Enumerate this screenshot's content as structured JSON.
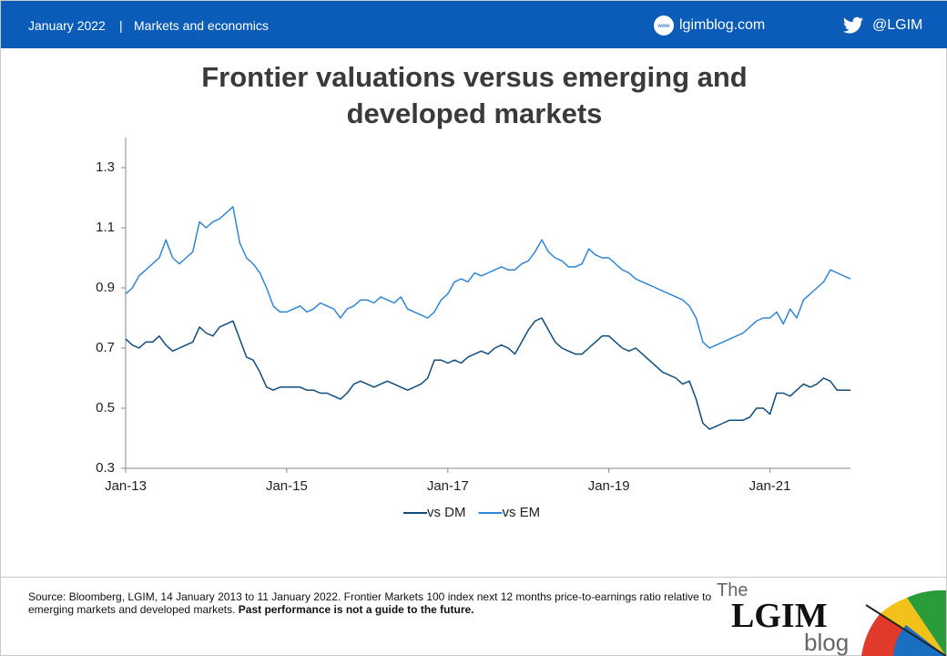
{
  "header": {
    "date": "January 2022",
    "section": "Markets and economics",
    "site": "lgimblog.com",
    "handle": "@LGIM"
  },
  "chart_data": {
    "type": "line",
    "title": "Frontier valuations versus emerging and developed markets",
    "x": [
      "2013-01",
      "2013-02",
      "2013-03",
      "2013-04",
      "2013-05",
      "2013-06",
      "2013-07",
      "2013-08",
      "2013-09",
      "2013-10",
      "2013-11",
      "2013-12",
      "2014-01",
      "2014-02",
      "2014-03",
      "2014-04",
      "2014-05",
      "2014-06",
      "2014-07",
      "2014-08",
      "2014-09",
      "2014-10",
      "2014-11",
      "2014-12",
      "2015-01",
      "2015-02",
      "2015-03",
      "2015-04",
      "2015-05",
      "2015-06",
      "2015-07",
      "2015-08",
      "2015-09",
      "2015-10",
      "2015-11",
      "2015-12",
      "2016-01",
      "2016-02",
      "2016-03",
      "2016-04",
      "2016-05",
      "2016-06",
      "2016-07",
      "2016-08",
      "2016-09",
      "2016-10",
      "2016-11",
      "2016-12",
      "2017-01",
      "2017-02",
      "2017-03",
      "2017-04",
      "2017-05",
      "2017-06",
      "2017-07",
      "2017-08",
      "2017-09",
      "2017-10",
      "2017-11",
      "2017-12",
      "2018-01",
      "2018-02",
      "2018-03",
      "2018-04",
      "2018-05",
      "2018-06",
      "2018-07",
      "2018-08",
      "2018-09",
      "2018-10",
      "2018-11",
      "2018-12",
      "2019-01",
      "2019-02",
      "2019-03",
      "2019-04",
      "2019-05",
      "2019-06",
      "2019-07",
      "2019-08",
      "2019-09",
      "2019-10",
      "2019-11",
      "2019-12",
      "2020-01",
      "2020-02",
      "2020-03",
      "2020-04",
      "2020-05",
      "2020-06",
      "2020-07",
      "2020-08",
      "2020-09",
      "2020-10",
      "2020-11",
      "2020-12",
      "2021-01",
      "2021-02",
      "2021-03",
      "2021-04",
      "2021-05",
      "2021-06",
      "2021-07",
      "2021-08",
      "2021-09",
      "2021-10",
      "2021-11",
      "2021-12",
      "2022-01"
    ],
    "series": [
      {
        "name": "vs DM",
        "color": "#0e4c7f",
        "values": [
          0.73,
          0.71,
          0.7,
          0.72,
          0.72,
          0.74,
          0.71,
          0.69,
          0.7,
          0.71,
          0.72,
          0.77,
          0.75,
          0.74,
          0.77,
          0.78,
          0.79,
          0.73,
          0.67,
          0.66,
          0.62,
          0.57,
          0.56,
          0.57,
          0.57,
          0.57,
          0.57,
          0.56,
          0.56,
          0.55,
          0.55,
          0.54,
          0.53,
          0.55,
          0.58,
          0.59,
          0.58,
          0.57,
          0.58,
          0.59,
          0.58,
          0.57,
          0.56,
          0.57,
          0.58,
          0.6,
          0.66,
          0.66,
          0.65,
          0.66,
          0.65,
          0.67,
          0.68,
          0.69,
          0.68,
          0.7,
          0.71,
          0.7,
          0.68,
          0.72,
          0.76,
          0.79,
          0.8,
          0.76,
          0.72,
          0.7,
          0.69,
          0.68,
          0.68,
          0.7,
          0.72,
          0.74,
          0.74,
          0.72,
          0.7,
          0.69,
          0.7,
          0.68,
          0.66,
          0.64,
          0.62,
          0.61,
          0.6,
          0.58,
          0.59,
          0.53,
          0.45,
          0.43,
          0.44,
          0.45,
          0.46,
          0.46,
          0.46,
          0.47,
          0.5,
          0.5,
          0.48,
          0.55,
          0.55,
          0.54,
          0.56,
          0.58,
          0.57,
          0.58,
          0.6,
          0.59,
          0.56,
          0.56,
          0.56
        ]
      },
      {
        "name": "vs EM",
        "color": "#2f86d8",
        "values": [
          0.88,
          0.9,
          0.94,
          0.96,
          0.98,
          1.0,
          1.06,
          1.0,
          0.98,
          1.0,
          1.02,
          1.12,
          1.1,
          1.12,
          1.13,
          1.15,
          1.17,
          1.05,
          1.0,
          0.98,
          0.95,
          0.9,
          0.84,
          0.82,
          0.82,
          0.83,
          0.84,
          0.82,
          0.83,
          0.85,
          0.84,
          0.83,
          0.8,
          0.83,
          0.84,
          0.86,
          0.86,
          0.85,
          0.87,
          0.86,
          0.85,
          0.87,
          0.83,
          0.82,
          0.81,
          0.8,
          0.82,
          0.86,
          0.88,
          0.92,
          0.93,
          0.92,
          0.95,
          0.94,
          0.95,
          0.96,
          0.97,
          0.96,
          0.96,
          0.98,
          0.99,
          1.02,
          1.06,
          1.02,
          1.0,
          0.99,
          0.97,
          0.97,
          0.98,
          1.03,
          1.01,
          1.0,
          1.0,
          0.98,
          0.96,
          0.95,
          0.93,
          0.92,
          0.91,
          0.9,
          0.89,
          0.88,
          0.87,
          0.86,
          0.84,
          0.8,
          0.72,
          0.7,
          0.71,
          0.72,
          0.73,
          0.74,
          0.75,
          0.77,
          0.79,
          0.8,
          0.8,
          0.82,
          0.78,
          0.83,
          0.8,
          0.86,
          0.88,
          0.9,
          0.92,
          0.96,
          0.95,
          0.94,
          0.93
        ]
      }
    ],
    "xlim": [
      "2013-01",
      "2022-01"
    ],
    "xticks": [
      {
        "value": "2013-01",
        "label": "Jan-13"
      },
      {
        "value": "2015-01",
        "label": "Jan-15"
      },
      {
        "value": "2017-01",
        "label": "Jan-17"
      },
      {
        "value": "2019-01",
        "label": "Jan-19"
      },
      {
        "value": "2021-01",
        "label": "Jan-21"
      }
    ],
    "ylim": [
      0.3,
      1.4
    ],
    "yticks": [
      0.3,
      0.5,
      0.7,
      0.9,
      1.1,
      1.3
    ],
    "grid": false,
    "legend": "bottom"
  },
  "source": {
    "text": "Source: Bloomberg, LGIM, 14 January 2013 to 11 January 2022. Frontier Markets 100 index next 12 months price-to-earnings ratio relative to emerging markets and developed markets.",
    "note": "Past performance is not a guide to the future."
  },
  "logo": {
    "the": "The",
    "name": "LGIM",
    "blog": "blog"
  }
}
